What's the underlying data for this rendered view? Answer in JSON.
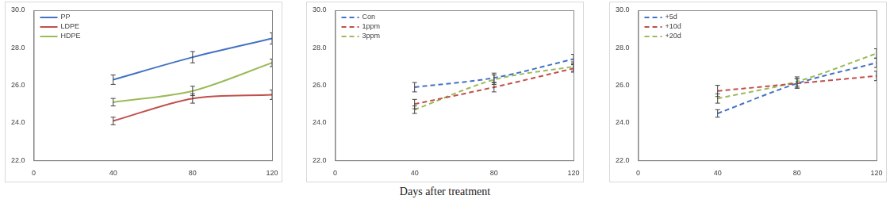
{
  "chart_data": [
    {
      "type": "line",
      "x": [
        40,
        80,
        120
      ],
      "xlim": [
        0,
        120
      ],
      "xticks": [
        0,
        40,
        80,
        120
      ],
      "ylim": [
        22,
        30
      ],
      "yticks": [
        {
          "value": 22,
          "label": "22.0"
        },
        {
          "value": 24,
          "label": "24.0"
        },
        {
          "value": 26,
          "label": "26.0"
        },
        {
          "value": 28,
          "label": "28.0"
        },
        {
          "value": 30,
          "label": "30.0"
        }
      ],
      "grid": false,
      "legend": "upper left",
      "series": [
        {
          "name": "PP",
          "color": "#4472c4",
          "line_style": "solid",
          "values": [
            26.3,
            27.5,
            28.5
          ],
          "errors": [
            0.25,
            0.3,
            0.3
          ]
        },
        {
          "name": "LDPE",
          "color": "#c0504d",
          "line_style": "solid",
          "values": [
            24.1,
            25.3,
            25.5
          ],
          "errors": [
            0.2,
            0.25,
            0.25
          ]
        },
        {
          "name": "HDPE",
          "color": "#9bbb59",
          "line_style": "solid",
          "values": [
            25.1,
            25.7,
            27.2
          ],
          "errors": [
            0.2,
            0.25,
            0.2
          ]
        }
      ]
    },
    {
      "type": "line",
      "x": [
        40,
        80,
        120
      ],
      "xlim": [
        0,
        120
      ],
      "xticks": [
        0,
        40,
        80,
        120
      ],
      "ylim": [
        22,
        30
      ],
      "yticks": [
        {
          "value": 22,
          "label": "22.0"
        },
        {
          "value": 24,
          "label": "24.0"
        },
        {
          "value": 26,
          "label": "26.0"
        },
        {
          "value": 28,
          "label": "28.0"
        },
        {
          "value": 30,
          "label": "30.0"
        }
      ],
      "grid": false,
      "legend": "upper left",
      "x_label": "Days after treatment",
      "series": [
        {
          "name": "Con",
          "color": "#4472c4",
          "line_style": "dashed",
          "values": [
            25.9,
            26.4,
            27.4
          ],
          "errors": [
            0.25,
            0.25,
            0.25
          ]
        },
        {
          "name": "1ppm",
          "color": "#c0504d",
          "line_style": "dashed",
          "values": [
            25.0,
            25.9,
            26.9
          ],
          "errors": [
            0.25,
            0.25,
            0.2
          ]
        },
        {
          "name": "3ppm",
          "color": "#9bbb59",
          "line_style": "dashed",
          "values": [
            24.7,
            26.3,
            27.0
          ],
          "errors": [
            0.2,
            0.25,
            0.25
          ]
        }
      ]
    },
    {
      "type": "line",
      "x": [
        40,
        80,
        120
      ],
      "xlim": [
        0,
        120
      ],
      "xticks": [
        0,
        40,
        80,
        120
      ],
      "ylim": [
        22,
        30
      ],
      "yticks": [
        {
          "value": 22,
          "label": "22.0"
        },
        {
          "value": 24,
          "label": "24.0"
        },
        {
          "value": 26,
          "label": "26.0"
        },
        {
          "value": 28,
          "label": "28.0"
        },
        {
          "value": 30,
          "label": "30.0"
        }
      ],
      "grid": false,
      "legend": "upper left",
      "series": [
        {
          "name": "+5d",
          "color": "#4472c4",
          "line_style": "dashed",
          "values": [
            24.5,
            26.1,
            27.2
          ],
          "errors": [
            0.2,
            0.25,
            0.25
          ]
        },
        {
          "name": "+10d",
          "color": "#c0504d",
          "line_style": "dashed",
          "values": [
            25.7,
            26.1,
            26.5
          ],
          "errors": [
            0.3,
            0.25,
            0.25
          ]
        },
        {
          "name": "+20d",
          "color": "#9bbb59",
          "line_style": "dashed",
          "values": [
            25.3,
            26.2,
            27.7
          ],
          "errors": [
            0.25,
            0.25,
            0.25
          ]
        }
      ]
    }
  ]
}
